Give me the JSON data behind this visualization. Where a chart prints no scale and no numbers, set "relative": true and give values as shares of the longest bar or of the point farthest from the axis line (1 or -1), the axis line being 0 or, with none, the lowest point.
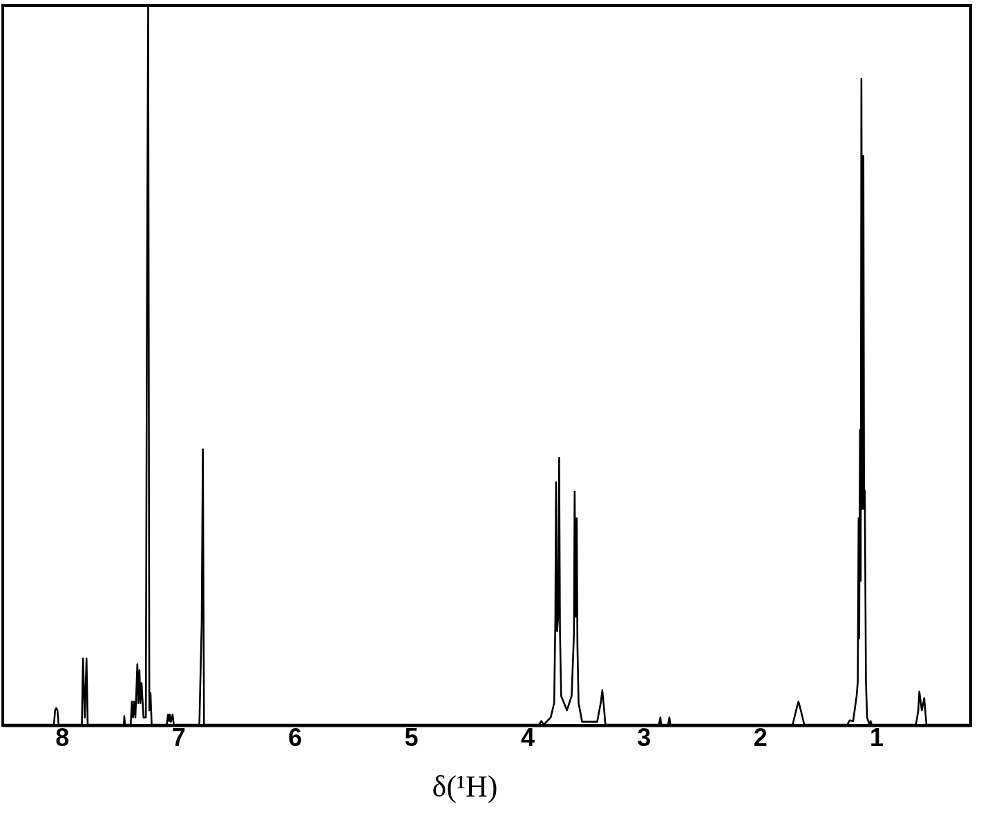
{
  "chart_data": {
    "type": "line",
    "xlabel": "δ(¹H)",
    "relative": true,
    "color": "#000000",
    "xlim": [
      8.51,
      0.19
    ],
    "xticks": [
      8,
      7,
      6,
      5,
      4,
      3,
      2,
      1
    ],
    "x": [
      8.51,
      8.07,
      8.06,
      8.05,
      8.04,
      8.03,
      7.83,
      7.82,
      7.805,
      7.79,
      7.78,
      7.47,
      7.465,
      7.46,
      7.41,
      7.4,
      7.39,
      7.38,
      7.37,
      7.353,
      7.345,
      7.335,
      7.327,
      7.317,
      7.3,
      7.28,
      7.27,
      7.26,
      7.25,
      7.24,
      7.23,
      7.1,
      7.09,
      7.08,
      7.074,
      7.065,
      7.05,
      7.04,
      6.82,
      6.8,
      6.79,
      6.78,
      3.9,
      3.88,
      3.86,
      3.8,
      3.77,
      3.76,
      3.754,
      3.745,
      3.735,
      3.727,
      3.72,
      3.71,
      3.66,
      3.62,
      3.6,
      3.594,
      3.585,
      3.576,
      3.57,
      3.56,
      3.53,
      3.4,
      3.37,
      3.356,
      3.34,
      3.33,
      2.87,
      2.857,
      2.85,
      2.79,
      2.78,
      2.77,
      1.72,
      1.69,
      1.67,
      1.65,
      1.62,
      1.25,
      1.23,
      1.2,
      1.17,
      1.16,
      1.153,
      1.148,
      1.141,
      1.135,
      1.129,
      1.12,
      1.112,
      1.106,
      1.1,
      1.09,
      1.08,
      1.06,
      1.05,
      1.04,
      0.66,
      0.64,
      0.631,
      0.61,
      0.589,
      0.57,
      0.19
    ],
    "values": [
      0,
      0,
      0.02,
      0.023,
      0.02,
      0,
      0,
      0.092,
      0.01,
      0.092,
      0,
      0,
      0.012,
      0,
      0,
      0.032,
      0.01,
      0.032,
      0.01,
      0.084,
      0.03,
      0.076,
      0.03,
      0.058,
      0.01,
      0.01,
      0.61,
      1.0,
      0.02,
      0.044,
      0,
      0,
      0.014,
      0.005,
      0.014,
      0.004,
      0.014,
      0,
      0,
      0.14,
      0.383,
      0,
      0,
      0.005,
      0,
      0.01,
      0.03,
      0.144,
      0.337,
      0.13,
      0.15,
      0.371,
      0.13,
      0.04,
      0.02,
      0.04,
      0.126,
      0.324,
      0.15,
      0.287,
      0.11,
      0.03,
      0.004,
      0.004,
      0.03,
      0.048,
      0.02,
      0,
      0,
      0.01,
      0,
      0,
      0.01,
      0,
      0,
      0.02,
      0.032,
      0.02,
      0,
      0,
      0.006,
      0.005,
      0.04,
      0.06,
      0.287,
      0.12,
      0.41,
      0.2,
      0.898,
      0.3,
      0.791,
      0.3,
      0.326,
      0.06,
      0.01,
      0,
      0.005,
      0,
      0,
      0.02,
      0.046,
      0.02,
      0.037,
      0,
      0
    ]
  }
}
